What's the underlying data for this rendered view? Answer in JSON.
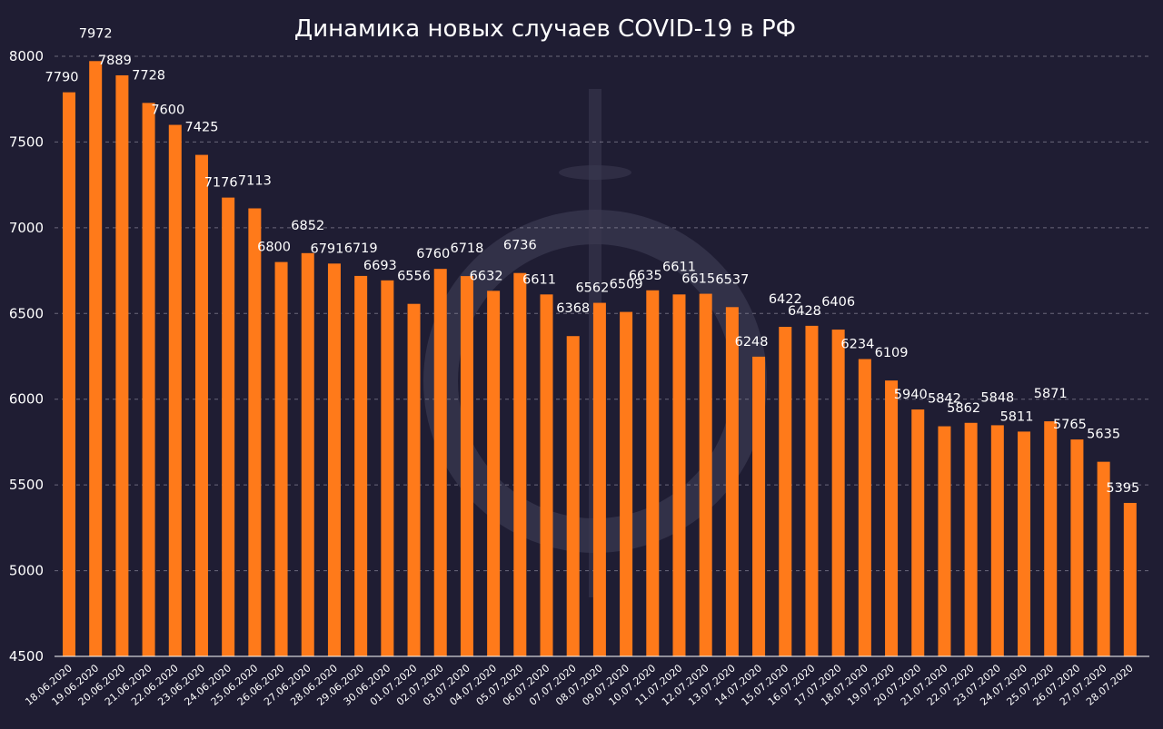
{
  "colors": {
    "background": "#1f1d33",
    "bar": "#ff7a1a",
    "text": "#ffffff",
    "grid": "#8a8799",
    "watermark": "#3a3850"
  },
  "chart_data": {
    "type": "bar",
    "title": "Динамика новых случаев COVID-19 в РФ",
    "xlabel": "",
    "ylabel": "",
    "ylim": [
      4500,
      8000
    ],
    "yticks": [
      4500,
      5000,
      5500,
      6000,
      6500,
      7000,
      7500,
      8000
    ],
    "grid": "horizontal dashed",
    "categories": [
      "18.06.2020",
      "19.06.2020",
      "20.06.2020",
      "21.06.2020",
      "22.06.2020",
      "23.06.2020",
      "24.06.2020",
      "25.06.2020",
      "26.06.2020",
      "27.06.2020",
      "28.06.2020",
      "29.06.2020",
      "30.06.2020",
      "01.07.2020",
      "02.07.2020",
      "03.07.2020",
      "04.07.2020",
      "05.07.2020",
      "06.07.2020",
      "07.07.2020",
      "08.07.2020",
      "09.07.2020",
      "10.07.2020",
      "11.07.2020",
      "12.07.2020",
      "13.07.2020",
      "14.07.2020",
      "15.07.2020",
      "16.07.2020",
      "17.07.2020",
      "18.07.2020",
      "19.07.2020",
      "20.07.2020",
      "21.07.2020",
      "22.07.2020",
      "23.07.2020",
      "24.07.2020",
      "25.07.2020",
      "26.07.2020",
      "27.07.2020",
      "28.07.2020"
    ],
    "values": [
      7790,
      7972,
      7889,
      7728,
      7600,
      7425,
      7176,
      7113,
      6800,
      6852,
      6791,
      6719,
      6693,
      6556,
      6760,
      6718,
      6632,
      6736,
      6611,
      6368,
      6562,
      6509,
      6635,
      6611,
      6615,
      6537,
      6248,
      6422,
      6428,
      6406,
      6234,
      6109,
      5940,
      5842,
      5862,
      5848,
      5811,
      5871,
      5765,
      5635,
      5395
    ]
  }
}
